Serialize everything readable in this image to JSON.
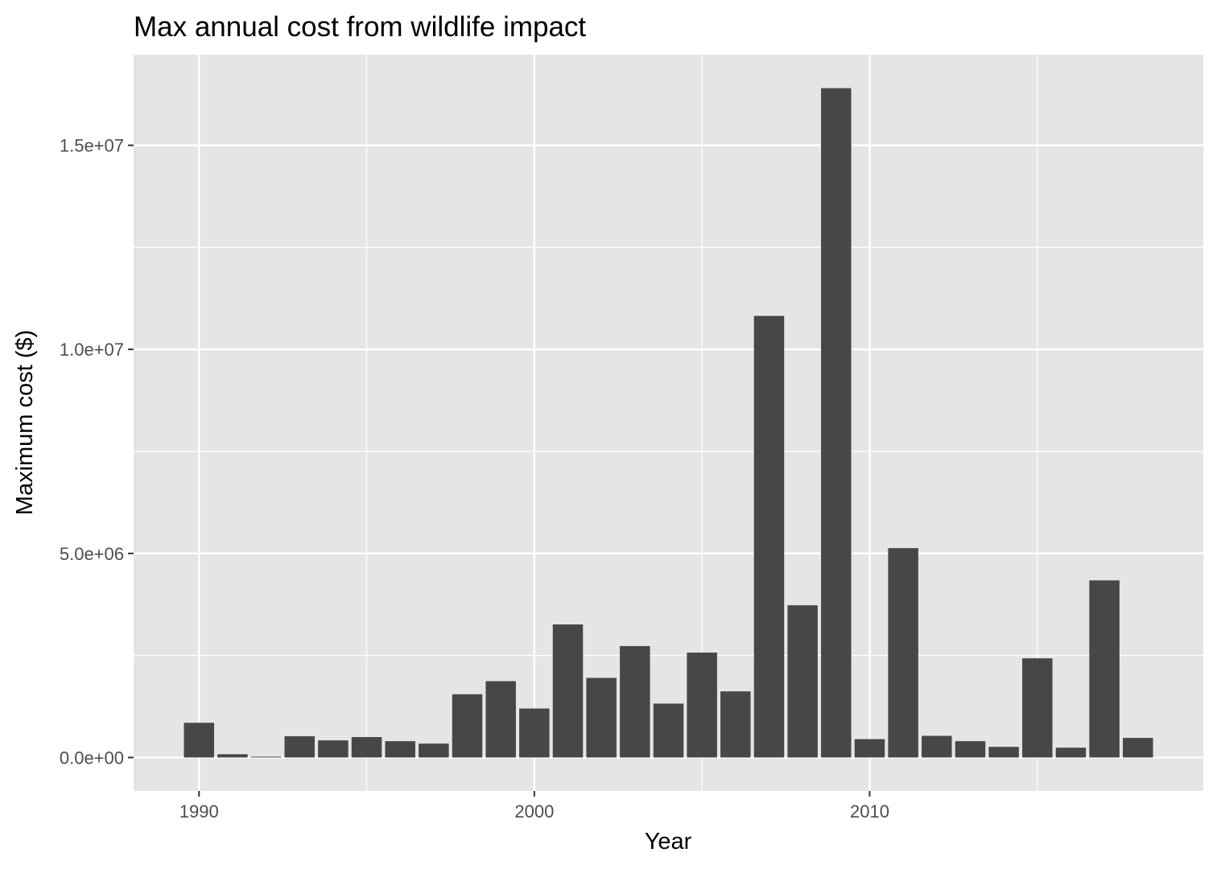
{
  "chart_data": {
    "type": "bar",
    "title": "Max annual cost from wildlife impact",
    "xlabel": "Year",
    "ylabel": "Maximum cost ($)",
    "x": [
      1990,
      1991,
      1992,
      1993,
      1994,
      1995,
      1996,
      1997,
      1998,
      1999,
      2000,
      2001,
      2002,
      2003,
      2004,
      2005,
      2006,
      2007,
      2008,
      2009,
      2010,
      2011,
      2012,
      2013,
      2014,
      2015,
      2016,
      2017,
      2018
    ],
    "values": [
      850000,
      80000,
      20000,
      520000,
      420000,
      500000,
      400000,
      340000,
      1550000,
      1870000,
      1200000,
      3260000,
      1950000,
      2730000,
      1320000,
      2570000,
      1620000,
      10820000,
      3730000,
      16400000,
      450000,
      5130000,
      530000,
      400000,
      260000,
      2430000,
      240000,
      4340000,
      480000
    ],
    "xlim": [
      1988.05,
      2019.95
    ],
    "ylim": [
      -820000,
      17220000
    ],
    "x_ticks": [
      1990,
      2000,
      2010
    ],
    "x_tick_labels": [
      "1990",
      "2000",
      "2010"
    ],
    "x_minor_ticks": [
      1995,
      2005,
      2015
    ],
    "y_ticks": [
      0,
      5000000,
      10000000,
      15000000
    ],
    "y_tick_labels": [
      "0.0e+00",
      "5.0e+06",
      "1.0e+07",
      "1.5e+07"
    ],
    "y_minor_ticks": [
      2500000,
      7500000,
      12500000
    ],
    "bar_color": "#474747",
    "panel_color": "#e5e5e5",
    "grid_color": "#ffffff",
    "grid": true,
    "legend": "none"
  }
}
